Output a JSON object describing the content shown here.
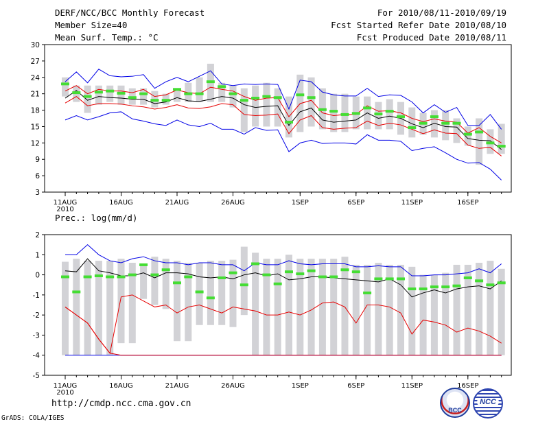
{
  "header": {
    "title": "DERF/NCC/BCC Monthly Forecast",
    "member": "Member Size=40",
    "variable": "Mean Surf. Temp.: °C",
    "period": "For 2010/08/11-2010/09/19",
    "started": "Fcst Started Refer Date 2010/08/10",
    "produced": "Fcst Produced Date 2010/08/11"
  },
  "footer": {
    "url": "http://cmdp.ncc.cma.gov.cn",
    "credit": "GrADS: COLA/IGES"
  },
  "logos": {
    "bcc": "BCC",
    "ncc": "NCC"
  },
  "colors": {
    "bar": "#d2d2d6",
    "mean": "#000000",
    "red": "#e60000",
    "blue": "#0000e6",
    "green": "#44dd33"
  },
  "chart_data": [
    {
      "type": "box-whisker-line",
      "title": "Mean Surf. Temp.: °C",
      "ylabel": "°C",
      "ylim": [
        3,
        30
      ],
      "yticks": [
        3,
        6,
        9,
        12,
        15,
        18,
        21,
        24,
        27,
        30
      ],
      "x_labels": [
        {
          "day": 0,
          "label": "11AUG",
          "sub": "2010"
        },
        {
          "day": 5,
          "label": "16AUG"
        },
        {
          "day": 10,
          "label": "21AUG"
        },
        {
          "day": 15,
          "label": "26AUG"
        },
        {
          "day": 21,
          "label": "1SEP"
        },
        {
          "day": 26,
          "label": "6SEP"
        },
        {
          "day": 31,
          "label": "11SEP"
        },
        {
          "day": 36,
          "label": "16SEP"
        }
      ],
      "days": 40,
      "bar_low": [
        20.5,
        19.5,
        17.5,
        19,
        19.5,
        19,
        19,
        19,
        18.5,
        19,
        19.5,
        19.5,
        19.5,
        19.5,
        19.5,
        18.5,
        14,
        15,
        15,
        15,
        13,
        14,
        15,
        14.5,
        14,
        14,
        14.5,
        14.5,
        14.5,
        14.5,
        13.5,
        13,
        13.5,
        13,
        12.5,
        12,
        11.5,
        8,
        10,
        10
      ],
      "bar_high": [
        24,
        22.5,
        22.5,
        22.5,
        22.5,
        22.5,
        22,
        22,
        21.5,
        21,
        22,
        23,
        24,
        26.5,
        23,
        22.5,
        22,
        22.5,
        23,
        22,
        20.5,
        24.5,
        24,
        22,
        21,
        21,
        20.5,
        20.5,
        19.5,
        20,
        19.5,
        18.5,
        17.5,
        18,
        18,
        16.5,
        15,
        16.5,
        14.5,
        15.5
      ],
      "mean": [
        20.2,
        21.6,
        19.8,
        20.5,
        20.3,
        20.2,
        20,
        20,
        19.2,
        19.5,
        20.3,
        19.7,
        19.6,
        20,
        20.5,
        20.2,
        19,
        18.5,
        18.7,
        18.8,
        15.2,
        17.7,
        18.4,
        16.2,
        15.8,
        16,
        16.2,
        17.5,
        16.5,
        16.9,
        16.5,
        15.5,
        14.8,
        15.6,
        15,
        14.9,
        12.8,
        12.5,
        12.4,
        10.8
      ],
      "red_hi": [
        21.5,
        22.5,
        21,
        21.8,
        21.5,
        21.5,
        21.2,
        21.8,
        20.5,
        20.8,
        21.7,
        21.2,
        21,
        22.2,
        21.8,
        21.5,
        20.5,
        19.8,
        20.2,
        20.3,
        16.8,
        19.2,
        19.8,
        17.5,
        17,
        17.2,
        17.2,
        18.8,
        17.8,
        17.9,
        17.5,
        16.5,
        15.9,
        16.4,
        16,
        15.8,
        13.8,
        14.8,
        13.2,
        12
      ],
      "red_lo": [
        19.3,
        20.5,
        18.8,
        19.2,
        19.2,
        19.1,
        18.8,
        18.6,
        18.2,
        18.5,
        19,
        18.4,
        18.3,
        18.6,
        19.2,
        19,
        17.2,
        17,
        17.1,
        17.3,
        13.7,
        16.2,
        17,
        14.8,
        14.5,
        14.7,
        14.8,
        16,
        15.2,
        15.6,
        15.3,
        14.5,
        13.7,
        14.4,
        13.8,
        13.7,
        11.6,
        11,
        11.2,
        9.6
      ],
      "blue_hi": [
        23.2,
        25,
        23,
        25.5,
        24.3,
        24.1,
        24.2,
        24.5,
        22,
        23.2,
        24,
        23.2,
        24.2,
        25.2,
        22.8,
        22.5,
        22.8,
        22.7,
        22.8,
        22.7,
        18.2,
        23.5,
        23.2,
        21.3,
        20.8,
        20.6,
        20.6,
        22,
        20.5,
        20.8,
        20.7,
        19.5,
        17.5,
        19,
        17.6,
        18.5,
        15.2,
        15.2,
        17.2,
        14.5
      ],
      "blue_lo": [
        16.2,
        17,
        16.2,
        16.8,
        17.5,
        17.7,
        16.4,
        16,
        15.5,
        15.2,
        16.2,
        15.3,
        15,
        15.6,
        14.5,
        14.5,
        13.6,
        14.8,
        14.3,
        14.4,
        10.4,
        12,
        12.5,
        11.9,
        12,
        12,
        11.8,
        13.5,
        12.5,
        12.5,
        12.3,
        10.6,
        11,
        11.3,
        10.2,
        9,
        8.3,
        8.4,
        7.2,
        5.2
      ],
      "green": [
        22.8,
        21.2,
        20.5,
        21.3,
        21.5,
        21.1,
        20.3,
        21,
        19.8,
        19.8,
        21.8,
        21,
        21,
        23.2,
        22.3,
        21,
        19.8,
        20.2,
        20.5,
        20.3,
        15.8,
        20.8,
        20.3,
        18.1,
        17.8,
        17.2,
        17.4,
        18.4,
        17.3,
        17.8,
        16.8,
        14.8,
        15.6,
        16.8,
        15.6,
        15.6,
        13.6,
        14,
        12,
        11.4
      ]
    },
    {
      "type": "box-whisker-line",
      "title": "Prec.: log(mm/d)",
      "ylabel": "log(mm/d)",
      "ylim": [
        -5,
        2
      ],
      "yticks": [
        -5,
        -4,
        -3,
        -2,
        -1,
        0,
        1,
        2
      ],
      "x_labels": [
        {
          "day": 0,
          "label": "11AUG",
          "sub": "2010"
        },
        {
          "day": 5,
          "label": "16AUG"
        },
        {
          "day": 10,
          "label": "21AUG"
        },
        {
          "day": 15,
          "label": "26AUG"
        },
        {
          "day": 21,
          "label": "1SEP"
        },
        {
          "day": 26,
          "label": "6SEP"
        },
        {
          "day": 31,
          "label": "11SEP"
        },
        {
          "day": 36,
          "label": "16SEP"
        }
      ],
      "days": 40,
      "bar_low": [
        -4,
        -4,
        -4,
        -4,
        -4,
        -3.4,
        -3.4,
        -1.2,
        -1.5,
        -1.7,
        -3.3,
        -3.3,
        -2.5,
        -2.5,
        -2.5,
        -2.6,
        -2,
        -4,
        -4,
        -4,
        -4,
        -4,
        -4,
        -4,
        -4,
        -4,
        -4,
        -4,
        -4,
        -4,
        -4,
        -4,
        -4,
        -4,
        -4,
        -4,
        -4,
        -4,
        -4,
        -4
      ],
      "bar_high": [
        0.65,
        0.8,
        0.7,
        0.7,
        0.7,
        0.8,
        0.6,
        0.5,
        0.9,
        0.8,
        0.7,
        0.6,
        0.6,
        0.7,
        0.7,
        0.75,
        1.4,
        1.1,
        0.8,
        0.8,
        1,
        0.8,
        0.8,
        0.8,
        0.8,
        0.9,
        0.5,
        0.5,
        0.6,
        0.5,
        0.5,
        0.4,
        0,
        0,
        0.1,
        0.5,
        0.5,
        0.6,
        0.7,
        0.3
      ],
      "mean": [
        0.2,
        0.15,
        0.8,
        0.2,
        0.1,
        -0.05,
        -0.05,
        0.1,
        -0.15,
        0.1,
        0.1,
        0.05,
        -0.1,
        -0.15,
        -0.1,
        -0.2,
        0,
        0.1,
        -0.05,
        0.05,
        -0.25,
        -0.2,
        -0.1,
        -0.1,
        -0.15,
        -0.2,
        -0.25,
        -0.3,
        -0.35,
        -0.2,
        -0.5,
        -1.1,
        -0.9,
        -0.75,
        -0.9,
        -0.7,
        -0.6,
        -0.55,
        -0.7,
        -0.3
      ],
      "red_hi": null,
      "red_lo": [
        -1.6,
        -2,
        -2.4,
        -3.2,
        -3.9,
        -4,
        -4,
        -4,
        -4,
        -4,
        -4,
        -4,
        -4,
        -4,
        -4,
        -4,
        -4,
        -4,
        -4,
        -4,
        -4,
        -4,
        -4,
        -4,
        -4,
        -4,
        -4,
        -4,
        -4,
        -4,
        -4,
        -4,
        -4,
        -4,
        -4,
        -4,
        -4,
        -4,
        -4,
        -4
      ],
      "red_mid": [
        -1.6,
        -2,
        -2.4,
        -3.2,
        -3.9,
        -1.1,
        -1,
        -1.3,
        -1.6,
        -1.5,
        -1.9,
        -1.6,
        -1.5,
        -1.7,
        -1.9,
        -1.6,
        -1.7,
        -1.8,
        -2,
        -2,
        -1.85,
        -2,
        -1.75,
        -1.4,
        -1.35,
        -1.6,
        -2.4,
        -1.5,
        -1.5,
        -1.6,
        -1.9,
        -2.95,
        -2.25,
        -2.35,
        -2.5,
        -2.85,
        -2.65,
        -2.8,
        -3.05,
        -3.4
      ],
      "blue_hi": [
        1,
        1,
        1.5,
        1,
        0.7,
        0.6,
        0.8,
        0.9,
        0.7,
        0.6,
        0.6,
        0.5,
        0.6,
        0.6,
        0.5,
        0.5,
        0.2,
        0.6,
        0.5,
        0.5,
        0.7,
        0.55,
        0.5,
        0.55,
        0.55,
        0.55,
        0.4,
        0.4,
        0.45,
        0.4,
        0.4,
        -0.05,
        -0.05,
        0,
        0,
        0.05,
        0.1,
        0.3,
        0.1,
        0.55
      ],
      "blue_lo": [
        -4,
        -4,
        -4,
        -4,
        -4,
        -4,
        -4,
        -4,
        -4,
        -4,
        -4,
        -4,
        -4,
        -4,
        -4,
        -4,
        -4,
        -4,
        -4,
        -4,
        -4,
        -4,
        -4,
        -4,
        -4,
        -4,
        -4,
        -4,
        -4,
        -4,
        -4,
        -4,
        -4,
        -4,
        -4,
        -4,
        -4,
        -4,
        -4,
        -4
      ],
      "green": [
        -0.1,
        -0.85,
        -0.1,
        -0.05,
        -0.1,
        -0.1,
        0,
        0.5,
        0,
        0.25,
        -0.4,
        -0.1,
        -0.85,
        -1.15,
        -0.15,
        0.1,
        -0.5,
        0.55,
        0,
        -0.45,
        0.15,
        0.05,
        0.2,
        -0.1,
        -0.1,
        0.25,
        0.15,
        -0.9,
        -0.2,
        -0.2,
        -0.2,
        -0.7,
        -0.7,
        -0.6,
        -0.6,
        -0.55,
        -0.15,
        -0.3,
        -0.5,
        -0.4
      ]
    }
  ]
}
